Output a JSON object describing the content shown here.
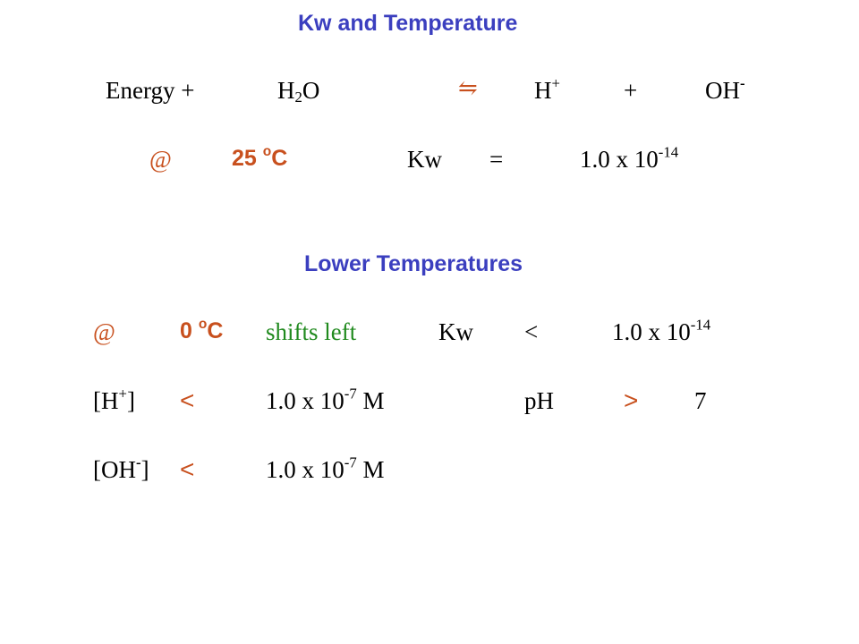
{
  "slide": {
    "title": "Kw and Temperature",
    "equation": {
      "energy": "Energy +",
      "water_main": "H",
      "water_sub": "2",
      "water_tail": "O",
      "arrow": "⇋",
      "hplus_base": "H",
      "hplus_sup": "+",
      "plus": "+",
      "oh_base": "OH",
      "oh_sup": "-"
    },
    "standard": {
      "at": "@",
      "temp_value": "25 ",
      "temp_deg": "o",
      "temp_unit": "C",
      "kw_label": "Kw",
      "equals": "=",
      "kw_value": "1.0  x  10",
      "kw_exp": "-14"
    },
    "lower": {
      "heading": "Lower Temperatures",
      "at": "@",
      "temp_value": "0 ",
      "temp_deg": "o",
      "temp_unit": "C",
      "shift": "shifts left",
      "kw_label": "Kw",
      "less": "<",
      "kw_value": "1.0  x  10",
      "kw_exp": "-14",
      "h_row": {
        "bracket_open": "[H",
        "sup": "+",
        "bracket_close": "]",
        "comparator": "<",
        "value": "1.0  x  10",
        "exp": "-7",
        "unit": " M",
        "ph_label": "pH",
        "ph_comparator": ">",
        "ph_value": "7"
      },
      "oh_row": {
        "bracket_open": "[OH",
        "sup": "-",
        "bracket_close": "]",
        "comparator": "<",
        "value": "1.0  x  10",
        "exp": "-7",
        "unit": " M"
      }
    }
  }
}
